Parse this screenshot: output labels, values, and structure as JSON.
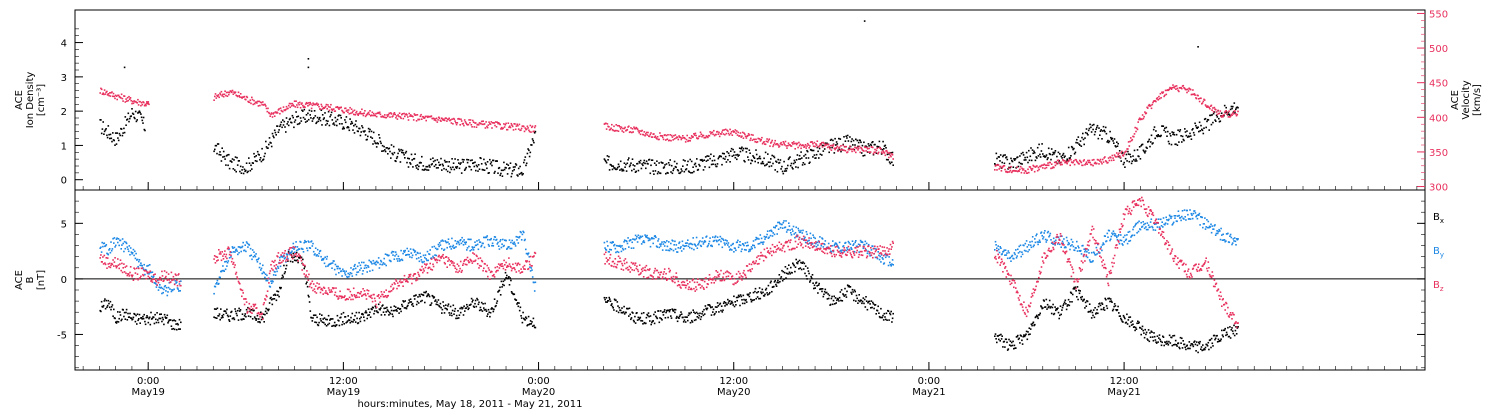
{
  "chart_data": [
    {
      "type": "scatter",
      "title": "",
      "ylabel_lines": [
        "ACE",
        "Ion Density",
        "[cm⁻³]"
      ],
      "ylim": [
        -0.3,
        4.95
      ],
      "yticks": [
        0,
        1,
        2,
        3,
        4
      ],
      "y2label_lines": [
        "ACE",
        "Velocity",
        "[km/s]"
      ],
      "y2lim": [
        295,
        555
      ],
      "y2ticks": [
        300,
        350,
        400,
        450,
        500,
        550
      ],
      "series": [
        {
          "color": "#000000",
          "axis": "left",
          "segments": [
            {
              "x": [
                -3.0,
                -2.5,
                -2.0,
                -1.5,
                -1.0,
                -0.5,
                -0.2
              ],
              "y": [
                1.6,
                1.4,
                1.2,
                1.6,
                2.0,
                1.8,
                1.5
              ]
            },
            {
              "x": [
                4.0,
                5.0,
                6.0,
                7.0,
                8.0,
                9.0,
                10.0,
                11.0,
                12.0,
                13.0,
                14.0,
                15.0,
                16.0,
                17.0,
                18.0,
                19.0,
                20.0,
                21.0,
                22.0,
                23.0,
                23.8
              ],
              "y": [
                1.0,
                0.5,
                0.4,
                0.8,
                1.5,
                1.8,
                1.9,
                1.8,
                1.7,
                1.5,
                1.2,
                0.8,
                0.6,
                0.5,
                0.5,
                0.4,
                0.5,
                0.4,
                0.3,
                0.3,
                1.4
              ]
            },
            {
              "x": [
                28.0,
                29.0,
                30.0,
                31.0,
                32.0,
                33.0,
                34.0,
                35.0,
                36.0,
                37.0,
                38.0,
                39.0,
                40.0,
                41.0,
                42.0,
                43.0,
                44.0,
                45.0,
                45.8
              ],
              "y": [
                0.5,
                0.5,
                0.45,
                0.4,
                0.4,
                0.4,
                0.5,
                0.6,
                0.8,
                0.7,
                0.6,
                0.4,
                0.6,
                0.8,
                1.0,
                1.1,
                0.9,
                1.0,
                0.6
              ]
            },
            {
              "x": [
                52.0,
                53.0,
                54.0,
                55.0,
                56.0,
                57.0,
                58.0,
                59.0,
                60.0,
                61.0,
                62.0,
                63.0,
                64.0,
                65.0,
                66.0,
                67.0
              ],
              "y": [
                0.6,
                0.5,
                0.7,
                0.9,
                0.6,
                1.0,
                1.5,
                1.3,
                0.6,
                0.8,
                1.5,
                1.2,
                1.4,
                1.6,
                2.0,
                2.2
              ]
            }
          ]
        },
        {
          "color": "#e8315e",
          "axis": "right",
          "segments": [
            {
              "x": [
                -3.0,
                -2.0,
                -1.0,
                0.0,
                -0.2
              ],
              "y": [
                440,
                432,
                425,
                420,
                418
              ]
            },
            {
              "x": [
                4.0,
                5.0,
                6.0,
                7.0,
                7.5,
                8.0,
                9.0,
                10.0,
                11.0,
                12.0,
                13.0,
                14.0,
                15.0,
                16.0,
                17.0,
                18.0,
                19.0,
                20.0,
                21.0,
                22.0,
                23.0,
                23.8
              ],
              "y": [
                430,
                438,
                428,
                420,
                405,
                410,
                420,
                418,
                416,
                412,
                408,
                405,
                404,
                402,
                400,
                398,
                395,
                392,
                390,
                388,
                386,
                384
              ]
            },
            {
              "x": [
                28.0,
                29.0,
                30.0,
                31.0,
                32.0,
                33.0,
                34.0,
                35.0,
                36.0,
                37.0,
                38.0,
                39.0,
                40.0,
                41.0,
                42.0,
                43.0,
                44.0,
                45.0,
                45.8
              ],
              "y": [
                388,
                385,
                382,
                375,
                372,
                370,
                375,
                378,
                380,
                372,
                365,
                362,
                360,
                362,
                358,
                355,
                355,
                352,
                345
              ]
            },
            {
              "x": [
                52.0,
                53.0,
                54.0,
                55.0,
                56.0,
                57.0,
                58.0,
                59.0,
                60.0,
                61.0,
                62.0,
                63.0,
                64.0,
                65.0,
                66.0,
                67.0
              ],
              "y": [
                330,
                325,
                325,
                330,
                335,
                335,
                335,
                340,
                350,
                400,
                430,
                445,
                440,
                420,
                405,
                408
              ]
            }
          ]
        }
      ],
      "outliers": [
        {
          "x": 44.0,
          "y": 4.65,
          "color": "#000000"
        },
        {
          "x": 9.8,
          "y": 3.55,
          "color": "#000000"
        },
        {
          "x": 9.8,
          "y": 3.3,
          "color": "#000000"
        },
        {
          "x": 64.5,
          "y": 3.9,
          "color": "#000000"
        },
        {
          "x": -1.5,
          "y": 3.3,
          "color": "#000000"
        }
      ]
    },
    {
      "type": "scatter",
      "title": "",
      "ylabel_lines": [
        "ACE",
        "B",
        "[nT]"
      ],
      "ylim": [
        -8.2,
        8.0
      ],
      "yticks": [
        -5,
        0,
        5
      ],
      "zero_line": true,
      "series": [
        {
          "name": "B",
          "sub": "x",
          "color": "#000000",
          "segments": [
            {
              "x": [
                -3.0,
                -2.5,
                -2.0,
                -1.5,
                -1.0,
                -0.5,
                0.0,
                0.5,
                1.0,
                1.5,
                2.0
              ],
              "y": [
                -2.5,
                -2.0,
                -3.5,
                -3.0,
                -3.5,
                -3.5,
                -3.5,
                -3.5,
                -3.5,
                -4.0,
                -4.0
              ]
            },
            {
              "x": [
                4.0,
                5.0,
                6.0,
                7.0,
                7.5,
                8.0,
                8.5,
                9.0,
                9.5,
                10.0,
                11.0,
                12.0,
                13.0,
                14.0,
                15.0,
                16.0,
                17.0,
                18.0,
                19.0,
                20.0,
                21.0,
                22.0,
                23.0,
                23.8
              ],
              "y": [
                -3.0,
                -3.2,
                -3.0,
                -3.5,
                -2.0,
                -1.0,
                2.0,
                2.0,
                1.5,
                -3.5,
                -3.8,
                -3.5,
                -3.5,
                -2.5,
                -3.0,
                -2.0,
                -1.5,
                -2.5,
                -3.0,
                -2.0,
                -3.0,
                0.5,
                -3.5,
                -3.8
              ]
            },
            {
              "x": [
                28.0,
                29.0,
                30.0,
                31.0,
                32.0,
                33.0,
                34.0,
                35.0,
                36.0,
                37.0,
                38.0,
                39.0,
                40.0,
                41.0,
                42.0,
                43.0,
                44.0,
                45.0,
                45.8
              ],
              "y": [
                -2.0,
                -2.5,
                -3.5,
                -3.5,
                -3.0,
                -3.5,
                -3.0,
                -2.5,
                -2.0,
                -1.5,
                -1.0,
                0.5,
                1.5,
                -0.5,
                -2.0,
                -1.0,
                -2.0,
                -3.0,
                -3.5
              ]
            },
            {
              "x": [
                52.0,
                53.0,
                54.0,
                55.0,
                56.0,
                57.0,
                58.0,
                59.0,
                60.0,
                61.0,
                62.0,
                63.0,
                64.0,
                65.0,
                66.0,
                67.0
              ],
              "y": [
                -5.0,
                -6.0,
                -5.0,
                -2.0,
                -3.0,
                -1.0,
                -3.0,
                -2.0,
                -3.5,
                -4.5,
                -5.5,
                -5.5,
                -6.0,
                -6.0,
                -5.0,
                -4.5
              ]
            }
          ]
        },
        {
          "name": "B",
          "sub": "y",
          "color": "#1e88e5",
          "segments": [
            {
              "x": [
                -3.0,
                -2.5,
                -2.0,
                -1.5,
                -1.0,
                -0.5,
                0.0,
                0.5,
                1.0,
                1.5,
                2.0
              ],
              "y": [
                3.0,
                2.8,
                3.5,
                3.0,
                2.5,
                1.0,
                1.0,
                -0.5,
                -1.0,
                -0.5,
                -0.5
              ]
            },
            {
              "x": [
                4.0,
                5.0,
                6.0,
                7.0,
                7.5,
                8.0,
                9.0,
                10.0,
                11.0,
                12.0,
                13.0,
                14.0,
                15.0,
                16.0,
                17.0,
                18.0,
                19.0,
                20.0,
                21.0,
                22.0,
                23.0,
                23.8
              ],
              "y": [
                -1.0,
                2.5,
                3.0,
                1.0,
                -0.5,
                1.5,
                3.0,
                3.0,
                1.5,
                0.5,
                1.0,
                1.5,
                2.0,
                2.5,
                2.0,
                3.0,
                3.5,
                3.0,
                3.5,
                3.0,
                4.0,
                -1.0
              ]
            },
            {
              "x": [
                28.0,
                29.0,
                30.0,
                31.0,
                32.0,
                33.0,
                34.0,
                35.0,
                36.0,
                37.0,
                38.0,
                39.0,
                40.0,
                41.0,
                42.0,
                43.0,
                44.0,
                45.0,
                45.8
              ],
              "y": [
                3.0,
                3.0,
                3.5,
                3.5,
                3.0,
                3.0,
                3.5,
                3.5,
                3.0,
                3.0,
                4.0,
                5.0,
                4.0,
                3.5,
                3.0,
                3.0,
                3.0,
                2.0,
                1.5
              ]
            },
            {
              "x": [
                52.0,
                53.0,
                54.0,
                55.0,
                56.0,
                57.0,
                58.0,
                59.0,
                60.0,
                61.0,
                62.0,
                63.0,
                64.0,
                65.0,
                66.0,
                67.0
              ],
              "y": [
                3.0,
                2.0,
                3.0,
                4.0,
                3.5,
                3.0,
                2.0,
                4.0,
                3.5,
                5.0,
                5.0,
                5.5,
                6.0,
                5.0,
                4.0,
                3.5
              ]
            }
          ]
        },
        {
          "name": "B",
          "sub": "z",
          "color": "#e8315e",
          "segments": [
            {
              "x": [
                -3.0,
                -2.5,
                -2.0,
                -1.5,
                -1.0,
                -0.5,
                0.0,
                0.5,
                1.0,
                1.5,
                2.0
              ],
              "y": [
                2.0,
                1.5,
                1.5,
                1.0,
                0.5,
                0.5,
                0.5,
                0.0,
                0.5,
                0.0,
                0.0
              ]
            },
            {
              "x": [
                4.0,
                5.0,
                6.0,
                7.0,
                7.5,
                8.0,
                9.0,
                10.0,
                11.0,
                12.0,
                13.0,
                14.0,
                15.0,
                16.0,
                17.0,
                18.0,
                19.0,
                20.0,
                21.0,
                22.0,
                23.0,
                23.8
              ],
              "y": [
                2.0,
                2.5,
                -2.5,
                -3.0,
                1.0,
                2.0,
                2.5,
                -0.5,
                -1.0,
                -1.5,
                -1.0,
                -2.0,
                -0.5,
                0.0,
                1.0,
                2.0,
                1.0,
                2.0,
                0.5,
                1.5,
                1.0,
                2.0
              ]
            },
            {
              "x": [
                28.0,
                29.0,
                30.0,
                31.0,
                32.0,
                33.0,
                34.0,
                35.0,
                36.0,
                37.0,
                38.0,
                39.0,
                40.0,
                41.0,
                42.0,
                43.0,
                44.0,
                45.0,
                45.8
              ],
              "y": [
                2.0,
                1.5,
                1.0,
                0.5,
                0.5,
                -0.5,
                -0.5,
                0.5,
                0.0,
                1.0,
                2.5,
                3.0,
                3.5,
                3.0,
                2.5,
                2.5,
                2.5,
                2.5,
                3.0
              ]
            },
            {
              "x": [
                52.0,
                53.0,
                54.0,
                55.0,
                56.0,
                57.0,
                58.0,
                59.0,
                60.0,
                61.0,
                62.0,
                63.0,
                64.0,
                65.0,
                66.0,
                67.0
              ],
              "y": [
                2.5,
                0.0,
                -3.0,
                2.0,
                4.0,
                -0.5,
                4.5,
                0.0,
                6.0,
                7.0,
                5.0,
                2.0,
                0.5,
                1.5,
                -2.0,
                -4.0
              ]
            }
          ]
        }
      ]
    }
  ],
  "xaxis": {
    "xlim": [
      -4.5,
      78.5
    ],
    "ticks": [
      {
        "x": 0,
        "time": "0:00",
        "date": "May19"
      },
      {
        "x": 12,
        "time": "12:00",
        "date": "May19"
      },
      {
        "x": 24,
        "time": "0:00",
        "date": "May20"
      },
      {
        "x": 36,
        "time": "12:00",
        "date": "May20"
      },
      {
        "x": 48,
        "time": "0:00",
        "date": "May21"
      },
      {
        "x": 60,
        "time": "12:00",
        "date": "May21"
      }
    ],
    "label": "hours:minutes, May 18, 2011 - May 21, 2011"
  }
}
